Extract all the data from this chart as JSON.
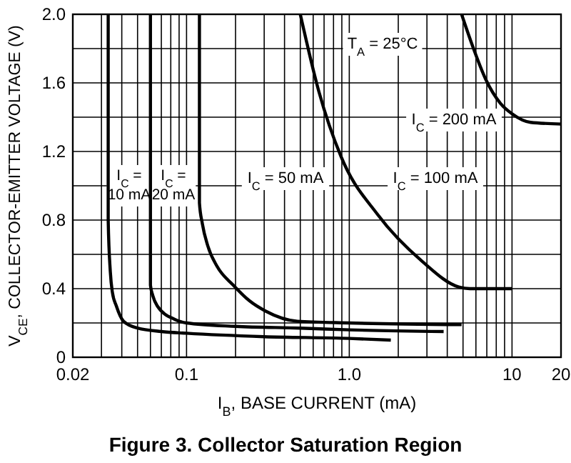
{
  "chart_data": {
    "type": "line",
    "title": "Figure 3. Collector Saturation Region",
    "xlabel": "I$_{B}$, BASE CURRENT (mA)",
    "ylabel": "V$_{CE}$, COLLECTOR-EMITTER VOLTAGE (V)",
    "log": "x",
    "grid": true,
    "marker": "none",
    "line_style": "solid",
    "xlim": [
      0.02,
      20
    ],
    "ylim": [
      0,
      2
    ],
    "xticks": [
      0.02,
      {
        "value": 0.03,
        "label": null
      },
      {
        "value": 0.04,
        "label": null
      },
      {
        "value": 0.05,
        "label": null
      },
      {
        "value": 0.06,
        "label": null
      },
      {
        "value": 0.07,
        "label": null
      },
      {
        "value": 0.08,
        "label": null
      },
      {
        "value": 0.09,
        "label": null
      },
      0.1,
      {
        "value": 0.2,
        "label": null
      },
      {
        "value": 0.3,
        "label": null
      },
      {
        "value": 0.4,
        "label": null
      },
      {
        "value": 0.5,
        "label": null
      },
      {
        "value": 0.6,
        "label": null
      },
      {
        "value": 0.7,
        "label": null
      },
      {
        "value": 0.8,
        "label": null
      },
      {
        "value": 0.9,
        "label": null
      },
      {
        "value": 1,
        "label": "1.0"
      },
      {
        "value": 2,
        "label": null
      },
      {
        "value": 3,
        "label": null
      },
      {
        "value": 4,
        "label": null
      },
      {
        "value": 5,
        "label": null
      },
      {
        "value": 6,
        "label": null
      },
      {
        "value": 7,
        "label": null
      },
      {
        "value": 8,
        "label": null
      },
      {
        "value": 9,
        "label": null
      },
      10,
      20
    ],
    "yticks": [
      0,
      {
        "value": 0.2,
        "label": null
      },
      0.4,
      {
        "value": 0.6,
        "label": null
      },
      0.8,
      {
        "value": 1,
        "label": null
      },
      1.2,
      {
        "value": 1.4,
        "label": null
      },
      1.6,
      {
        "value": 1.8,
        "label": null
      },
      {
        "value": 2,
        "label": "2.0"
      }
    ],
    "series": [
      {
        "color": "#000000",
        "x": [
          0.033,
          0.033,
          0.034,
          0.035,
          0.037,
          0.041,
          0.05,
          0.07,
          0.1,
          0.3,
          1.0,
          1.8
        ],
        "values": [
          2.0,
          0.8,
          0.5,
          0.38,
          0.3,
          0.21,
          0.17,
          0.15,
          0.14,
          0.12,
          0.11,
          0.1
        ]
      },
      {
        "color": "#000000",
        "x": [
          0.06,
          0.06,
          0.062,
          0.066,
          0.085,
          0.1,
          0.2,
          0.5,
          1.0,
          3.8
        ],
        "values": [
          2.0,
          0.42,
          0.36,
          0.3,
          0.22,
          0.2,
          0.18,
          0.17,
          0.16,
          0.15
        ]
      },
      {
        "color": "#000000",
        "x": [
          0.12,
          0.12,
          0.125,
          0.135,
          0.154,
          0.194,
          0.243,
          0.305,
          0.48,
          1.0,
          4.9
        ],
        "values": [
          2.0,
          0.9,
          0.78,
          0.65,
          0.53,
          0.42,
          0.33,
          0.27,
          0.21,
          0.2,
          0.19
        ]
      },
      {
        "color": "#000000",
        "x": [
          0.5,
          0.65,
          0.89,
          1.5,
          2.8,
          4.7,
          5.5,
          10
        ],
        "values": [
          2.0,
          1.55,
          1.17,
          0.83,
          0.56,
          0.41,
          0.4,
          0.4
        ]
      },
      {
        "color": "#000000",
        "x": [
          4.9,
          5.8,
          6.9,
          8.5,
          10,
          13,
          20
        ],
        "values": [
          2.0,
          1.8,
          1.62,
          1.48,
          1.42,
          1.37,
          1.36
        ]
      }
    ],
    "annotations": [
      "I$_{C}$ =\n10 mA",
      "I$_{C}$ =\n20 mA",
      "I$_{C}$ = 50 mA",
      "I$_{C}$ = 100 mA",
      "I$_{C}$ = 200 mA",
      "T$_{A}$ = 25°C"
    ]
  }
}
